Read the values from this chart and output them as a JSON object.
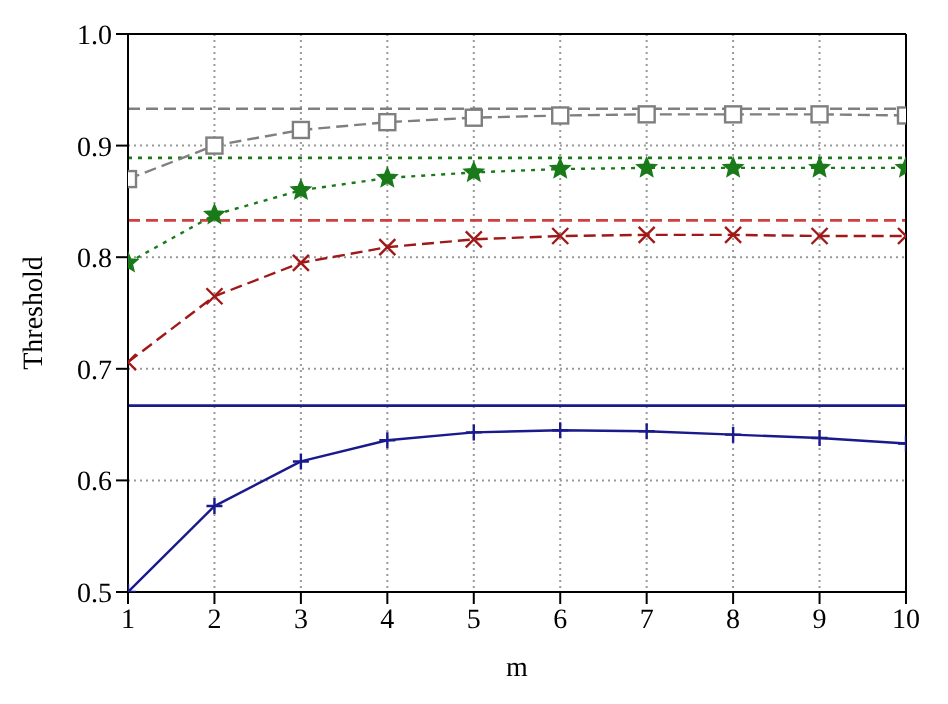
{
  "chart_data": {
    "type": "line",
    "xlabel": "m",
    "ylabel": "Threshold",
    "x": [
      1,
      2,
      3,
      4,
      5,
      6,
      7,
      8,
      9,
      10
    ],
    "xlim": [
      1,
      10
    ],
    "xticks": [
      1,
      2,
      3,
      4,
      5,
      6,
      7,
      8,
      9,
      10
    ],
    "ylim": [
      0.5,
      1.0
    ],
    "yticks": [
      0.5,
      0.6,
      0.7,
      0.8,
      0.9,
      {
        "value": 1.0,
        "label": "1.0"
      }
    ],
    "grid": true,
    "series": [
      {
        "color": "#7f7f7f",
        "marker": "square",
        "line_style": "dashed",
        "values": [
          0.87,
          0.9,
          0.914,
          0.921,
          0.925,
          0.927,
          0.928,
          0.928,
          0.928,
          0.927
        ]
      },
      {
        "color": "#1a7a1a",
        "marker": "star",
        "line_style": "dotted",
        "values": [
          0.795,
          0.838,
          0.86,
          0.871,
          0.876,
          0.879,
          0.88,
          0.88,
          0.88,
          0.88
        ]
      },
      {
        "color": "#a01818",
        "marker": "cross",
        "line_style": "dashed",
        "values": [
          0.706,
          0.765,
          0.795,
          0.809,
          0.816,
          0.819,
          0.82,
          0.82,
          0.819,
          0.819
        ]
      },
      {
        "color": "#1a1a8c",
        "marker": "plus",
        "line_style": "solid",
        "values": [
          0.5,
          0.577,
          0.617,
          0.636,
          0.643,
          0.645,
          0.644,
          0.641,
          0.638,
          0.633
        ]
      }
    ],
    "ref_lines": [
      {
        "axis": "y",
        "value": 0.933,
        "color": "#7f7f7f",
        "line_style": "dashed"
      },
      {
        "axis": "y",
        "value": 0.889,
        "color": "#1a7a1a",
        "line_style": "dotted"
      },
      {
        "axis": "y",
        "value": 0.833,
        "color": "#d04040",
        "line_style": "dashed"
      },
      {
        "axis": "y",
        "value": 0.667,
        "color": "#1a1a8c",
        "line_style": "solid"
      }
    ]
  }
}
